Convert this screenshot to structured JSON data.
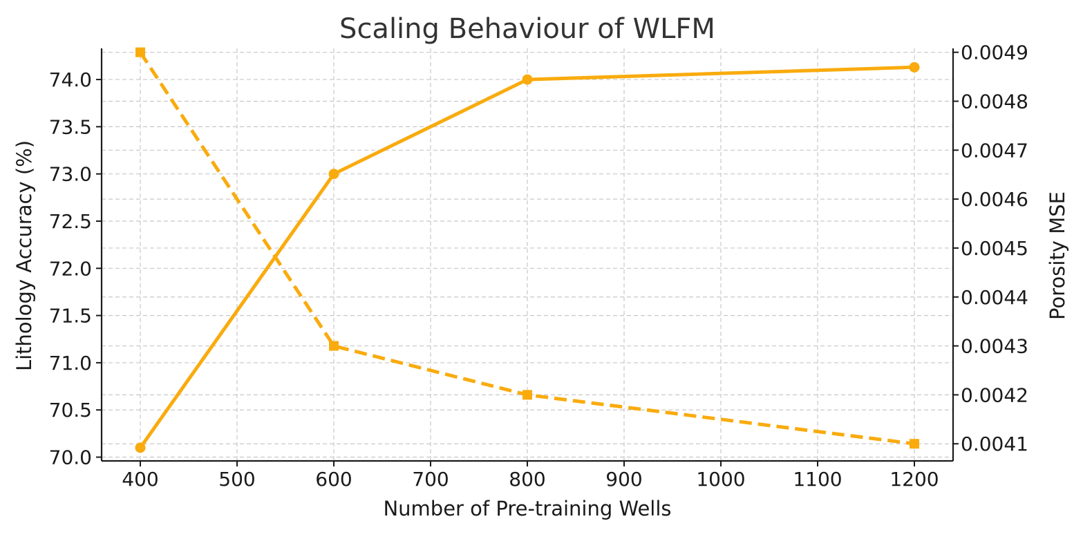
{
  "chart_data": {
    "type": "line",
    "title": "Scaling Behaviour of WLFM",
    "xlabel": "Number of Pre-training Wells",
    "ylabel": "Lithology Accuracy (%)",
    "y2label": "Porosity MSE",
    "xlim": [
      360,
      1240
    ],
    "ylim": [
      69.96,
      74.33
    ],
    "y2lim": [
      0.004065,
      0.004908
    ],
    "x": [
      400,
      600,
      800,
      1200
    ],
    "x_ticks": [
      400,
      500,
      600,
      700,
      800,
      900,
      1000,
      1100,
      1200
    ],
    "x_tick_labels": [
      "400",
      "500",
      "600",
      "700",
      "800",
      "900",
      "1000",
      "1100",
      "1200"
    ],
    "y_ticks": [
      70.0,
      70.5,
      71.0,
      71.5,
      72.0,
      72.5,
      73.0,
      73.5,
      74.0
    ],
    "y_tick_labels": [
      "70.0",
      "70.5",
      "71.0",
      "71.5",
      "72.0",
      "72.5",
      "73.0",
      "73.5",
      "74.0"
    ],
    "y2_ticks": [
      0.0041,
      0.0042,
      0.0043,
      0.0044,
      0.0045,
      0.0046,
      0.0047,
      0.0048,
      0.0049
    ],
    "y2_tick_labels": [
      "0.0041",
      "0.0042",
      "0.0043",
      "0.0044",
      "0.0045",
      "0.0046",
      "0.0047",
      "0.0048",
      "0.0049"
    ],
    "grid": true,
    "series": [
      {
        "name": "Lithology Accuracy (%)",
        "axis": "left",
        "values": [
          70.1,
          73.0,
          74.0,
          74.13
        ],
        "color": "#f9ab0e",
        "line_style": "solid",
        "marker": "circle"
      },
      {
        "name": "Porosity MSE",
        "axis": "right",
        "values": [
          0.0049,
          0.0043,
          0.0042,
          0.0041
        ],
        "color": "#f9ab0e",
        "line_style": "dashed",
        "marker": "square"
      }
    ]
  }
}
